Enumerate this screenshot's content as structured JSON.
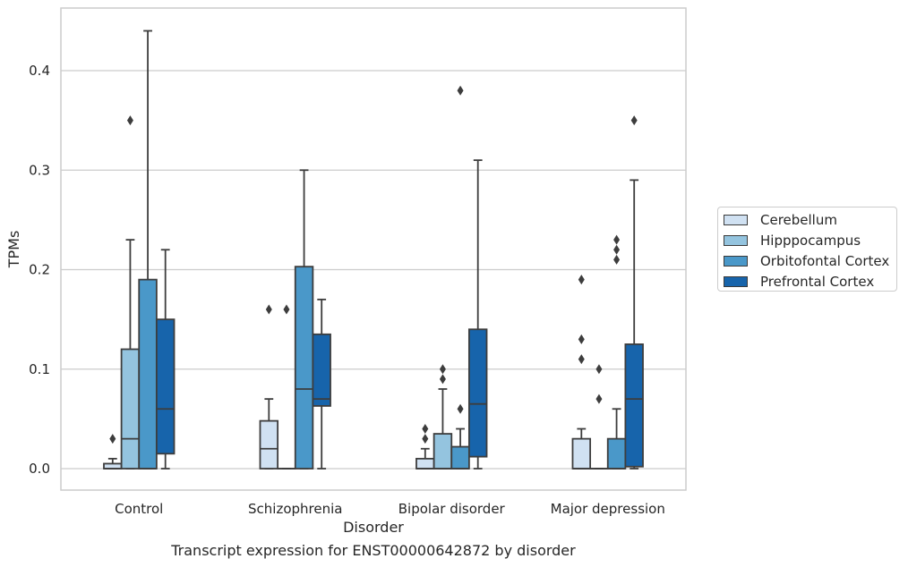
{
  "chart_data": {
    "type": "box",
    "caption": "Transcript expression for ENST00000642872 by disorder",
    "xlabel": "Disorder",
    "ylabel": "TPMs",
    "ylim": [
      -0.021,
      0.464
    ],
    "yticks": [
      "0.0",
      "0.1",
      "0.2",
      "0.3",
      "0.4"
    ],
    "grid": true,
    "legend_position": "right",
    "categories": [
      "Control",
      "Schizophrenia",
      "Bipolar disorder",
      "Major depression"
    ],
    "series": [
      {
        "name": "Cerebellum",
        "color": "#d0e1f2",
        "boxes": [
          {
            "min": 0.0,
            "q1": 0.0,
            "median": 0.0,
            "q3": 0.005,
            "max": 0.01,
            "outliers": [
              0.03
            ]
          },
          {
            "min": 0.0,
            "q1": 0.0,
            "median": 0.02,
            "q3": 0.048,
            "max": 0.07,
            "outliers": [
              0.16
            ]
          },
          {
            "min": 0.0,
            "q1": 0.0,
            "median": 0.0,
            "q3": 0.01,
            "max": 0.02,
            "outliers": [
              0.03,
              0.04
            ]
          },
          {
            "min": 0.0,
            "q1": 0.0,
            "median": 0.0,
            "q3": 0.03,
            "max": 0.04,
            "outliers": [
              0.11,
              0.13,
              0.19
            ]
          }
        ]
      },
      {
        "name": "Hipppocampus",
        "color": "#94c4df",
        "boxes": [
          {
            "min": 0.0,
            "q1": 0.0,
            "median": 0.03,
            "q3": 0.12,
            "max": 0.23,
            "outliers": [
              0.35
            ]
          },
          {
            "min": 0.0,
            "q1": 0.0,
            "median": 0.0,
            "q3": 0.0,
            "max": 0.0,
            "outliers": [
              0.16
            ]
          },
          {
            "min": 0.0,
            "q1": 0.0,
            "median": 0.0,
            "q3": 0.035,
            "max": 0.08,
            "outliers": [
              0.09,
              0.1
            ]
          },
          {
            "min": 0.0,
            "q1": 0.0,
            "median": 0.0,
            "q3": 0.0,
            "max": 0.0,
            "outliers": [
              0.07,
              0.1
            ]
          }
        ]
      },
      {
        "name": "Orbitofontal Cortex",
        "color": "#4a98c9",
        "boxes": [
          {
            "min": 0.0,
            "q1": 0.0,
            "median": 0.0,
            "q3": 0.19,
            "max": 0.44,
            "outliers": []
          },
          {
            "min": 0.0,
            "q1": 0.0,
            "median": 0.08,
            "q3": 0.203,
            "max": 0.3,
            "outliers": []
          },
          {
            "min": 0.0,
            "q1": 0.0,
            "median": 0.0,
            "q3": 0.022,
            "max": 0.04,
            "outliers": [
              0.06,
              0.38
            ]
          },
          {
            "min": 0.0,
            "q1": 0.0,
            "median": 0.0,
            "q3": 0.03,
            "max": 0.06,
            "outliers": [
              0.21,
              0.22,
              0.23
            ]
          }
        ]
      },
      {
        "name": "Prefrontal Cortex",
        "color": "#1764ab",
        "boxes": [
          {
            "min": 0.0,
            "q1": 0.015,
            "median": 0.06,
            "q3": 0.15,
            "max": 0.22,
            "outliers": []
          },
          {
            "min": 0.0,
            "q1": 0.063,
            "median": 0.07,
            "q3": 0.135,
            "max": 0.17,
            "outliers": []
          },
          {
            "min": 0.0,
            "q1": 0.012,
            "median": 0.065,
            "q3": 0.14,
            "max": 0.31,
            "outliers": []
          },
          {
            "min": 0.0,
            "q1": 0.002,
            "median": 0.07,
            "q3": 0.125,
            "max": 0.29,
            "outliers": [
              0.35
            ]
          }
        ]
      }
    ]
  }
}
